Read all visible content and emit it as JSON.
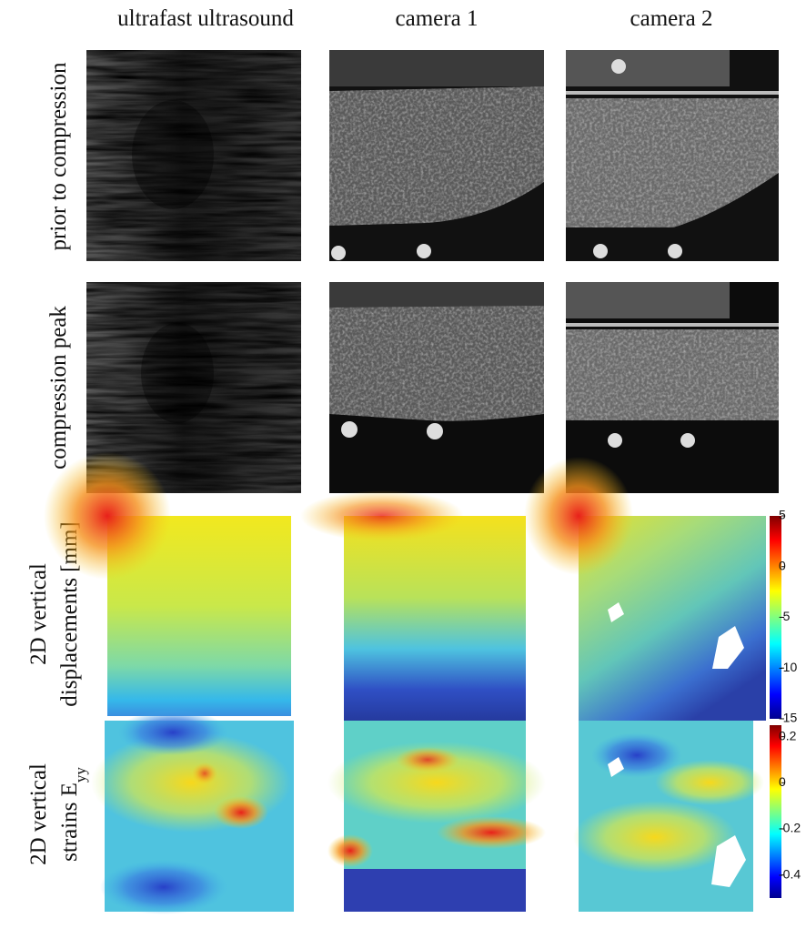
{
  "columns": [
    "ultrafast ultrasound",
    "camera 1",
    "camera 2"
  ],
  "rows": [
    {
      "label": "prior to compression"
    },
    {
      "label": "compression peak"
    },
    {
      "line1": "2D vertical",
      "line2": "displacements [mm]"
    },
    {
      "line1": "2D vertical",
      "line2": "strains E",
      "subscript": "yy"
    }
  ],
  "colorbars": [
    {
      "lim": [
        -15,
        5
      ],
      "ticks": [
        5,
        0,
        -5,
        -10,
        -15
      ]
    },
    {
      "lim": [
        -0.5,
        0.25
      ],
      "ticks": [
        0.2,
        0,
        -0.2,
        -0.4
      ]
    }
  ]
}
